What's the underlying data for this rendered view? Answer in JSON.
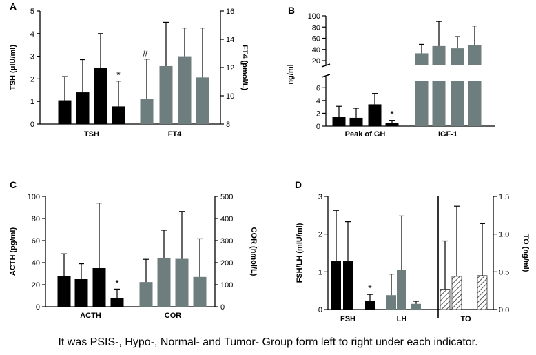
{
  "caption": "It was PSIS-, Hypo-, Normal- and Tumor- Group form left to right under each indicator.",
  "colors": {
    "black": "#000000",
    "grey": "#6e7e7e",
    "hatch": "#555555"
  },
  "chart_data": [
    {
      "panel": "A",
      "type": "bar",
      "ylabel": "TSH (μIU/ml)",
      "ylim": [
        0,
        5
      ],
      "yticks": [
        "0",
        "1",
        "2",
        "3",
        "4",
        "5"
      ],
      "y2label": "FT4 (pmol/L)",
      "y2lim": [
        8,
        16
      ],
      "y2ticks": [
        "8",
        "10",
        "12",
        "14",
        "16"
      ],
      "groups": [
        {
          "label": "TSH",
          "axis": "left",
          "color": "black",
          "values": [
            1.05,
            1.4,
            2.5,
            0.78
          ],
          "errors": [
            1.05,
            1.45,
            1.5,
            1.12
          ],
          "marks": [
            "",
            "",
            "",
            "*"
          ]
        },
        {
          "label": "FT4",
          "axis": "right",
          "color": "grey",
          "values": [
            9.8,
            12.1,
            12.8,
            11.3
          ],
          "errors": [
            2.8,
            3.1,
            2.0,
            3.5
          ],
          "marks": [
            "#",
            "",
            "",
            ""
          ]
        }
      ]
    },
    {
      "panel": "B",
      "type": "bar",
      "ylabel": "ng/ml",
      "broken_axis": true,
      "ylim_lower": [
        0,
        7
      ],
      "yticks_lower": [
        "0",
        "2",
        "4",
        "6"
      ],
      "ylim_upper": [
        0,
        100
      ],
      "yticks_upper": [
        "20",
        "40",
        "60",
        "80",
        "100"
      ],
      "groups": [
        {
          "label": "Peak of GH",
          "segment": "lower",
          "color": "black",
          "values": [
            1.4,
            1.3,
            3.4,
            0.5
          ],
          "errors": [
            1.7,
            1.5,
            1.7,
            0.4
          ],
          "marks": [
            "",
            "",
            "",
            "*"
          ]
        },
        {
          "label": "IGF-1",
          "segment": "upper",
          "color": "grey",
          "values": [
            33,
            46,
            42,
            48
          ],
          "errors": [
            16,
            44,
            21,
            34
          ],
          "marks": [
            "",
            "",
            "",
            ""
          ]
        }
      ]
    },
    {
      "panel": "C",
      "type": "bar",
      "ylabel": "ACTH (pg/ml)",
      "ylim": [
        0,
        100
      ],
      "yticks": [
        "0",
        "20",
        "40",
        "60",
        "80",
        "100"
      ],
      "y2label": "COR (nmol/L)",
      "y2lim": [
        0,
        500
      ],
      "y2ticks": [
        "0",
        "100",
        "200",
        "300",
        "400",
        "500"
      ],
      "groups": [
        {
          "label": "ACTH",
          "axis": "left",
          "color": "black",
          "values": [
            28,
            25,
            35,
            8
          ],
          "errors": [
            20,
            14,
            59,
            8
          ],
          "marks": [
            "",
            "",
            "",
            "*"
          ]
        },
        {
          "label": "COR",
          "axis": "right",
          "color": "grey",
          "values": [
            112,
            222,
            217,
            135
          ],
          "errors": [
            103,
            125,
            215,
            173
          ],
          "marks": [
            "",
            "",
            "",
            ""
          ]
        }
      ]
    },
    {
      "panel": "D",
      "type": "bar",
      "ylabel": "FSH/LH (mIU/ml)",
      "ylim": [
        0,
        3
      ],
      "yticks": [
        "0",
        "1",
        "2",
        "3"
      ],
      "y2label": "TO (ng/ml)",
      "y2lim": [
        0,
        1.5
      ],
      "y2ticks": [
        "0.0",
        "0.5",
        "1.0",
        "1.5"
      ],
      "groups": [
        {
          "label": "FSH",
          "axis": "left",
          "color": "black",
          "values": [
            1.28,
            1.28,
            0.22,
            null
          ],
          "errors": [
            1.35,
            1.05,
            0.18,
            null
          ],
          "marks": [
            "",
            "",
            "*",
            ""
          ]
        },
        {
          "label": "LH",
          "axis": "left",
          "color": "grey",
          "values": [
            0.38,
            1.05,
            0,
            0.15
          ],
          "errors": [
            0.56,
            1.43,
            0,
            0.07
          ],
          "marks": [
            "",
            "",
            "",
            ""
          ]
        },
        {
          "label": "TO",
          "axis": "right",
          "color": "hatch",
          "values": [
            0.27,
            0.44,
            0,
            0.45
          ],
          "errors": [
            0.64,
            0.93,
            0,
            0.69
          ],
          "marks": [
            "",
            "",
            "",
            ""
          ]
        }
      ]
    }
  ]
}
